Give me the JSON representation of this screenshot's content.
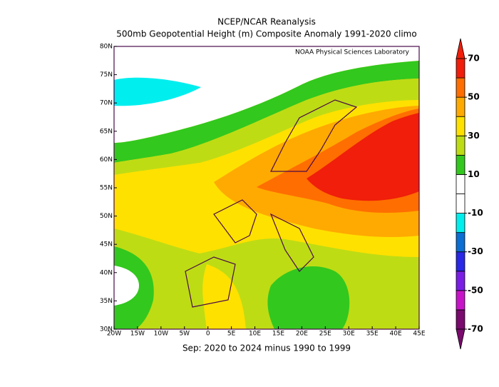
{
  "title": "NCEP/NCAR Reanalysis",
  "subtitle": "500mb Geopotential Height (m) Composite Anomaly 1991-2020 climo",
  "credit": "NOAA Physical Sciences Laboratory",
  "footer": "Sep: 2020 to 2024 minus 1990 to 1999",
  "map": {
    "lonlim": [
      -20,
      45
    ],
    "latlim": [
      30,
      80
    ],
    "lonticks": [
      {
        "value": -20,
        "label": "20W"
      },
      {
        "value": -15,
        "label": "15W"
      },
      {
        "value": -10,
        "label": "10W"
      },
      {
        "value": -5,
        "label": "5W"
      },
      0,
      {
        "value": 5,
        "label": "5E"
      },
      {
        "value": 10,
        "label": "10E"
      },
      {
        "value": 15,
        "label": "15E"
      },
      {
        "value": 20,
        "label": "20E"
      },
      {
        "value": 25,
        "label": "25E"
      },
      {
        "value": 30,
        "label": "30E"
      },
      {
        "value": 35,
        "label": "35E"
      },
      {
        "value": 40,
        "label": "40E"
      },
      {
        "value": 45,
        "label": "45E"
      }
    ],
    "latticks": [
      {
        "value": 30,
        "label": "30N"
      },
      {
        "value": 35,
        "label": "35N"
      },
      {
        "value": 40,
        "label": "40N"
      },
      {
        "value": 45,
        "label": "45N"
      },
      {
        "value": 50,
        "label": "50N"
      },
      {
        "value": 55,
        "label": "55N"
      },
      {
        "value": 60,
        "label": "60N"
      },
      {
        "value": 65,
        "label": "65N"
      },
      {
        "value": 70,
        "label": "70N"
      },
      {
        "value": 75,
        "label": "75N"
      },
      {
        "value": 80,
        "label": "80N"
      }
    ]
  },
  "colorbar": {
    "range": [
      -70,
      70
    ],
    "ticks": [
      70,
      50,
      30,
      10,
      -10,
      -30,
      -50,
      -70
    ],
    "colors": [
      "#7a0a6e",
      "#c814c8",
      "#7a1ee6",
      "#2828e6",
      "#0a6ed2",
      "#00eeee",
      "#ffffff",
      "#ffffff",
      "#32c81e",
      "#bedc14",
      "#ffe100",
      "#ffaa00",
      "#ff6e00",
      "#f01e0a"
    ]
  }
}
